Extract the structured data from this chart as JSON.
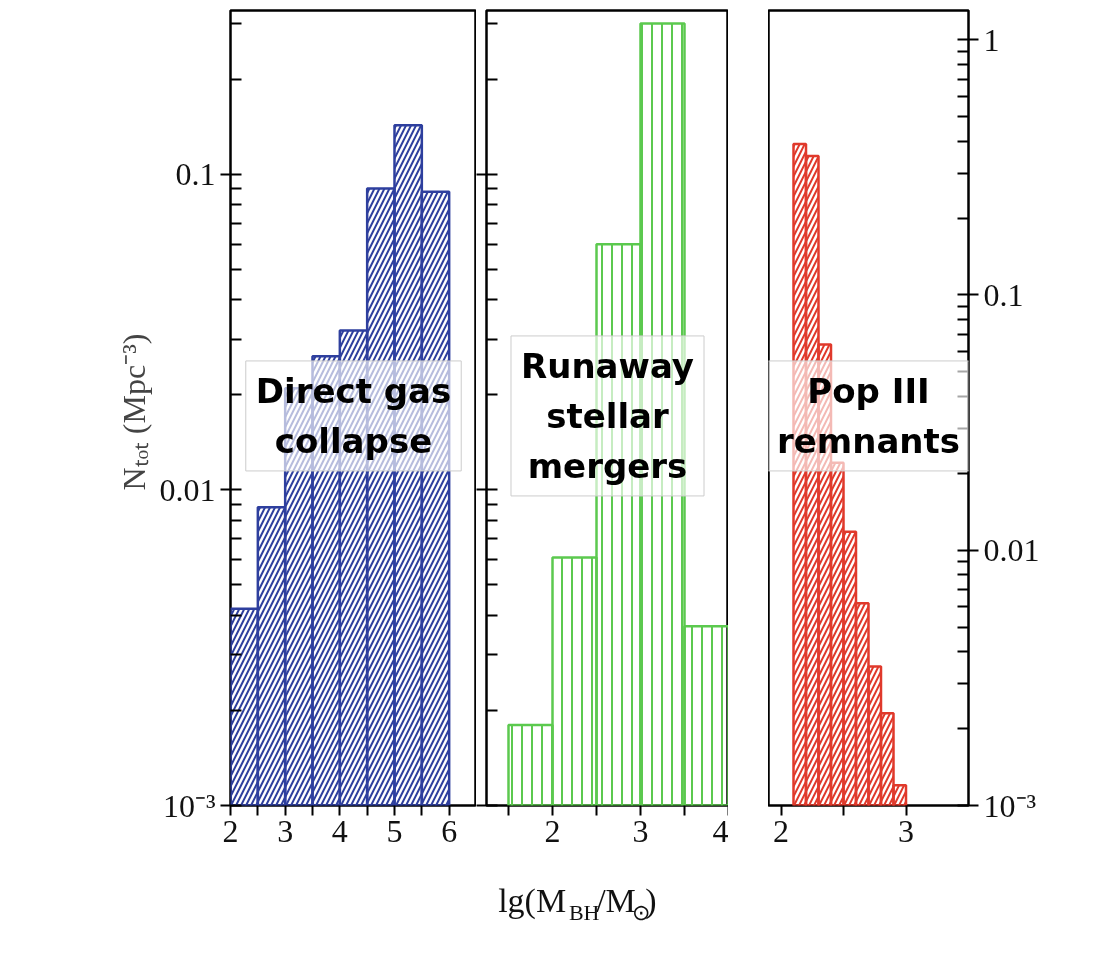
{
  "chart_data": [
    {
      "type": "histogram",
      "ylabel": "Nₜₒₜ  (Mpc⁻³)",
      "color": "#2e3f9e",
      "bins": [
        2.0,
        2.5,
        3.0,
        3.5,
        4.0,
        4.5,
        5.0,
        5.5,
        6.0
      ],
      "values": [
        0.0042,
        0.0088,
        0.021,
        0.0265,
        0.032,
        0.09,
        0.143,
        0.088
      ],
      "xlim": [
        2,
        6.5
      ],
      "xticks": [
        2,
        {
          "value": 2.5,
          "label": null
        },
        3,
        {
          "value": 3.5,
          "label": null
        },
        4,
        {
          "value": 4.5,
          "label": null
        },
        5,
        {
          "value": 5.5,
          "label": null
        },
        6
      ],
      "ylim": [
        0.001,
        0.33
      ],
      "yticks": [
        {
          "value": 0.001,
          "label": "10⁻³"
        },
        0.01,
        0.1
      ],
      "log": true,
      "annotations": [
        "Direct gas\ncollapse"
      ]
    },
    {
      "type": "histogram",
      "xlabel": "lg(M$_{BH}$/M$_{⊙}$)",
      "color": "#5cc94f",
      "bins": [
        1.5,
        2.0,
        2.5,
        3.0,
        3.5,
        4.0
      ],
      "values": [
        0.0018,
        0.0061,
        0.06,
        0.3,
        0.0037
      ],
      "xlim": [
        1.25,
        4
      ],
      "xticks": [
        {
          "value": 1.5,
          "label": null
        },
        2,
        {
          "value": 2.5,
          "label": null
        },
        3,
        {
          "value": 3.5,
          "label": null
        },
        4
      ],
      "ylim": [
        0.001,
        0.33
      ],
      "yticks": [
        0.001,
        0.01,
        0.1
      ],
      "log": true,
      "tick_labels": "x",
      "annotations": [
        "Runaway\nstellar\nmergers"
      ]
    },
    {
      "type": "histogram",
      "color": "#e0392b",
      "bins": [
        2.1,
        2.2,
        2.3,
        2.4,
        2.5,
        2.6,
        2.7,
        2.8,
        2.9,
        3.0
      ],
      "values": [
        0.39,
        0.35,
        0.064,
        0.022,
        0.0118,
        0.0062,
        0.0035,
        0.0023,
        0.0012
      ],
      "xlim": [
        1.9,
        3.5
      ],
      "xticks": [
        2,
        {
          "value": 2.5,
          "label": null
        },
        3
      ],
      "ylim": [
        0.001,
        1.3
      ],
      "yticks": [
        {
          "value": 0.001,
          "label": "10⁻³"
        },
        0.01,
        0.1,
        1
      ],
      "log": true,
      "annotations": [
        "Pop III\nremnants"
      ]
    }
  ]
}
